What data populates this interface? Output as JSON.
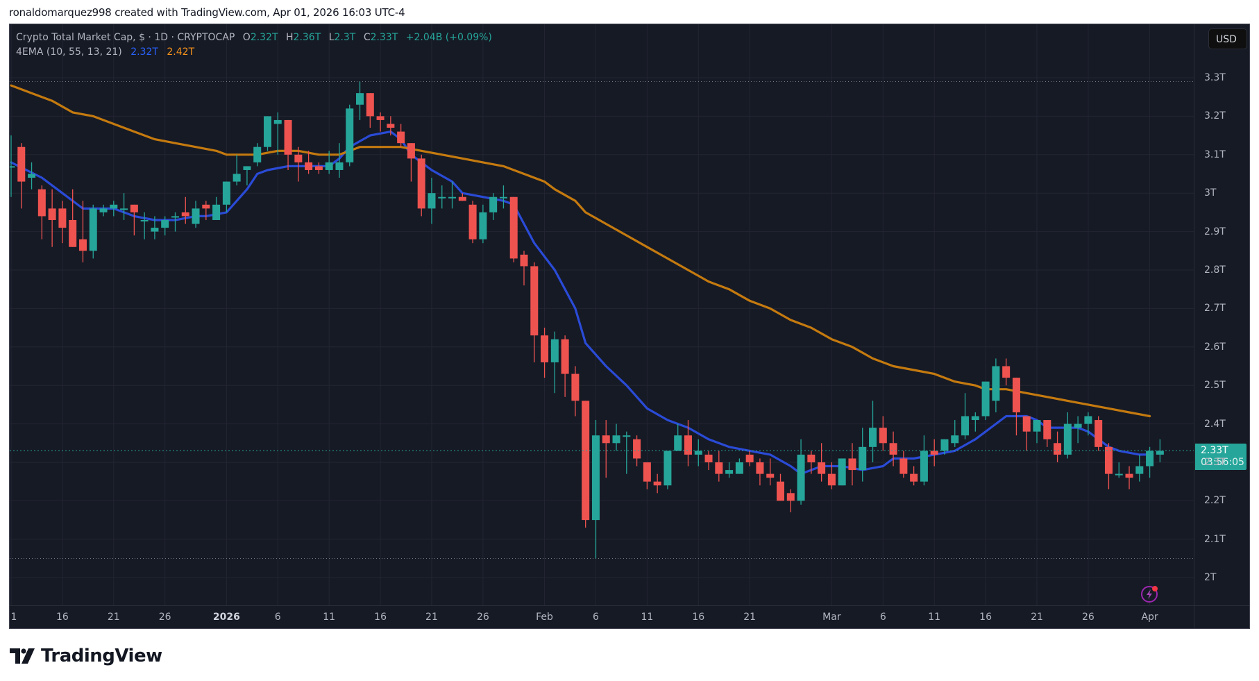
{
  "credit": "ronaldomarquez998 created with TradingView.com, Apr 01, 2026 16:03 UTC-4",
  "legend": {
    "symbol": "Crypto Total Market Cap, $ · 1D · CRYPTOCAP",
    "o_label": "O",
    "o": "2.32T",
    "h_label": "H",
    "h": "2.36T",
    "l_label": "L",
    "l": "2.3T",
    "c_label": "C",
    "c": "2.33T",
    "change": "+2.04B (+0.09%)",
    "indicator": "4EMA (10, 55, 13, 21)",
    "ema_fast": "2.32T",
    "ema_slow": "2.42T"
  },
  "price_axis": {
    "currency_button": "USD",
    "last_price": "2.33T",
    "countdown": "03:56:05"
  },
  "logo": {
    "text": "TradingView"
  },
  "colors": {
    "background": "#161a25",
    "grid": "#232632",
    "up": "#26a69a",
    "down": "#ef5350",
    "ema_fast": "#2a4bd7",
    "ema_slow": "#c47a0f",
    "last_price": "#26a69a",
    "alert_icon": "#9c27b0"
  },
  "chart_data": {
    "type": "candlestick",
    "title": "Crypto Total Market Cap, $ · 1D · CRYPTOCAP",
    "xlabel": "",
    "ylabel": "USD",
    "ylim": [
      1.93,
      3.38
    ],
    "grid": true,
    "y_ticks": [
      "3.3T",
      "3.2T",
      "3.1T",
      "3T",
      "2.9T",
      "2.8T",
      "2.7T",
      "2.6T",
      "2.5T",
      "2.4T",
      "2.3T",
      "2.2T",
      "2.1T",
      "2T"
    ],
    "y_tick_values": [
      3.3,
      3.2,
      3.1,
      3.0,
      2.9,
      2.8,
      2.7,
      2.6,
      2.5,
      2.4,
      2.3,
      2.2,
      2.1,
      2.0
    ],
    "x_ticks": [
      {
        "label": "1",
        "day": 0
      },
      {
        "label": "16",
        "day": 5
      },
      {
        "label": "21",
        "day": 10
      },
      {
        "label": "26",
        "day": 15
      },
      {
        "label": "2026",
        "day": 21,
        "bold": true
      },
      {
        "label": "6",
        "day": 26
      },
      {
        "label": "11",
        "day": 31
      },
      {
        "label": "16",
        "day": 36
      },
      {
        "label": "21",
        "day": 41
      },
      {
        "label": "26",
        "day": 46
      },
      {
        "label": "Feb",
        "day": 52
      },
      {
        "label": "6",
        "day": 57
      },
      {
        "label": "11",
        "day": 62
      },
      {
        "label": "16",
        "day": 67
      },
      {
        "label": "21",
        "day": 72
      },
      {
        "label": "Mar",
        "day": 80
      },
      {
        "label": "6",
        "day": 85
      },
      {
        "label": "11",
        "day": 90
      },
      {
        "label": "16",
        "day": 95
      },
      {
        "label": "21",
        "day": 100
      },
      {
        "label": "26",
        "day": 105
      },
      {
        "label": "Apr",
        "day": 111
      }
    ],
    "x_start": "Dec 11 2025",
    "hlines": [
      3.29,
      2.05
    ],
    "last_price": 2.33,
    "candles_ohlc_T": [
      [
        3.07,
        3.15,
        2.99,
        3.07
      ],
      [
        3.12,
        3.13,
        2.96,
        3.03
      ],
      [
        3.04,
        3.08,
        3.01,
        3.05
      ],
      [
        3.01,
        3.02,
        2.88,
        2.94
      ],
      [
        2.96,
        3.01,
        2.86,
        2.93
      ],
      [
        2.96,
        2.98,
        2.87,
        2.91
      ],
      [
        2.93,
        3.01,
        2.86,
        2.86
      ],
      [
        2.88,
        2.98,
        2.82,
        2.85
      ],
      [
        2.85,
        2.97,
        2.83,
        2.96
      ],
      [
        2.95,
        2.97,
        2.94,
        2.96
      ],
      [
        2.96,
        2.98,
        2.94,
        2.97
      ],
      [
        2.96,
        3.0,
        2.93,
        2.96
      ],
      [
        2.97,
        2.96,
        2.89,
        2.95
      ],
      [
        2.93,
        2.95,
        2.88,
        2.93
      ],
      [
        2.9,
        2.94,
        2.88,
        2.91
      ],
      [
        2.91,
        2.94,
        2.89,
        2.93
      ],
      [
        2.94,
        2.95,
        2.9,
        2.94
      ],
      [
        2.95,
        2.99,
        2.92,
        2.94
      ],
      [
        2.92,
        2.98,
        2.91,
        2.96
      ],
      [
        2.97,
        2.98,
        2.93,
        2.96
      ],
      [
        2.93,
        2.99,
        2.93,
        2.97
      ],
      [
        2.97,
        3.02,
        2.95,
        3.03
      ],
      [
        3.03,
        3.1,
        3.02,
        3.05
      ],
      [
        3.06,
        3.07,
        3.02,
        3.07
      ],
      [
        3.08,
        3.13,
        3.07,
        3.12
      ],
      [
        3.12,
        3.2,
        3.11,
        3.2
      ],
      [
        3.18,
        3.21,
        3.1,
        3.19
      ],
      [
        3.19,
        3.19,
        3.06,
        3.1
      ],
      [
        3.1,
        3.12,
        3.03,
        3.08
      ],
      [
        3.08,
        3.11,
        3.05,
        3.06
      ],
      [
        3.07,
        3.08,
        3.05,
        3.06
      ],
      [
        3.06,
        3.11,
        3.05,
        3.08
      ],
      [
        3.06,
        3.13,
        3.04,
        3.08
      ],
      [
        3.08,
        3.23,
        3.07,
        3.22
      ],
      [
        3.23,
        3.29,
        3.19,
        3.26
      ],
      [
        3.26,
        3.24,
        3.17,
        3.2
      ],
      [
        3.2,
        3.21,
        3.16,
        3.19
      ],
      [
        3.18,
        3.2,
        3.15,
        3.17
      ],
      [
        3.16,
        3.18,
        3.12,
        3.13
      ],
      [
        3.13,
        3.13,
        3.03,
        3.09
      ],
      [
        3.09,
        3.1,
        2.94,
        2.96
      ],
      [
        2.96,
        3.04,
        2.92,
        3.0
      ],
      [
        2.99,
        3.02,
        2.96,
        2.99
      ],
      [
        2.99,
        3.03,
        2.96,
        2.99
      ],
      [
        2.99,
        3.0,
        2.98,
        2.98
      ],
      [
        2.97,
        2.98,
        2.87,
        2.88
      ],
      [
        2.88,
        2.97,
        2.87,
        2.95
      ],
      [
        2.95,
        3.0,
        2.93,
        2.99
      ],
      [
        2.99,
        3.02,
        2.96,
        2.99
      ],
      [
        2.99,
        2.98,
        2.82,
        2.83
      ],
      [
        2.84,
        2.85,
        2.76,
        2.81
      ],
      [
        2.81,
        2.82,
        2.56,
        2.63
      ],
      [
        2.63,
        2.65,
        2.52,
        2.56
      ],
      [
        2.56,
        2.64,
        2.48,
        2.62
      ],
      [
        2.62,
        2.63,
        2.47,
        2.53
      ],
      [
        2.53,
        2.55,
        2.42,
        2.46
      ],
      [
        2.46,
        2.46,
        2.13,
        2.15
      ],
      [
        2.15,
        2.41,
        2.05,
        2.37
      ],
      [
        2.37,
        2.41,
        2.26,
        2.35
      ],
      [
        2.35,
        2.4,
        2.33,
        2.37
      ],
      [
        2.37,
        2.38,
        2.27,
        2.37
      ],
      [
        2.36,
        2.37,
        2.29,
        2.31
      ],
      [
        2.3,
        2.28,
        2.23,
        2.25
      ],
      [
        2.25,
        2.27,
        2.22,
        2.24
      ],
      [
        2.24,
        2.32,
        2.23,
        2.33
      ],
      [
        2.33,
        2.4,
        2.33,
        2.37
      ],
      [
        2.37,
        2.41,
        2.29,
        2.32
      ],
      [
        2.32,
        2.36,
        2.29,
        2.33
      ],
      [
        2.32,
        2.33,
        2.28,
        2.3
      ],
      [
        2.3,
        2.33,
        2.25,
        2.27
      ],
      [
        2.27,
        2.3,
        2.26,
        2.28
      ],
      [
        2.27,
        2.31,
        2.27,
        2.3
      ],
      [
        2.32,
        2.33,
        2.29,
        2.3
      ],
      [
        2.3,
        2.31,
        2.24,
        2.27
      ],
      [
        2.27,
        2.31,
        2.24,
        2.26
      ],
      [
        2.25,
        2.27,
        2.21,
        2.2
      ],
      [
        2.22,
        2.23,
        2.17,
        2.2
      ],
      [
        2.2,
        2.36,
        2.19,
        2.32
      ],
      [
        2.32,
        2.33,
        2.27,
        2.3
      ],
      [
        2.3,
        2.35,
        2.25,
        2.27
      ],
      [
        2.27,
        2.3,
        2.23,
        2.24
      ],
      [
        2.24,
        2.31,
        2.24,
        2.31
      ],
      [
        2.31,
        2.35,
        2.24,
        2.28
      ],
      [
        2.28,
        2.39,
        2.25,
        2.34
      ],
      [
        2.34,
        2.46,
        2.3,
        2.39
      ],
      [
        2.39,
        2.42,
        2.33,
        2.35
      ],
      [
        2.35,
        2.38,
        2.29,
        2.32
      ],
      [
        2.31,
        2.33,
        2.26,
        2.27
      ],
      [
        2.27,
        2.29,
        2.24,
        2.25
      ],
      [
        2.25,
        2.37,
        2.24,
        2.33
      ],
      [
        2.33,
        2.36,
        2.29,
        2.32
      ],
      [
        2.33,
        2.35,
        2.32,
        2.36
      ],
      [
        2.35,
        2.41,
        2.34,
        2.37
      ],
      [
        2.37,
        2.48,
        2.36,
        2.42
      ],
      [
        2.41,
        2.43,
        2.38,
        2.42
      ],
      [
        2.42,
        2.46,
        2.41,
        2.51
      ],
      [
        2.46,
        2.57,
        2.43,
        2.55
      ],
      [
        2.55,
        2.57,
        2.5,
        2.52
      ],
      [
        2.52,
        2.5,
        2.37,
        2.43
      ],
      [
        2.42,
        2.41,
        2.33,
        2.38
      ],
      [
        2.38,
        2.41,
        2.35,
        2.41
      ],
      [
        2.41,
        2.4,
        2.34,
        2.36
      ],
      [
        2.35,
        2.38,
        2.3,
        2.32
      ],
      [
        2.32,
        2.43,
        2.31,
        2.4
      ],
      [
        2.39,
        2.42,
        2.35,
        2.4
      ],
      [
        2.4,
        2.43,
        2.37,
        2.42
      ],
      [
        2.41,
        2.42,
        2.33,
        2.34
      ],
      [
        2.34,
        2.35,
        2.23,
        2.27
      ],
      [
        2.27,
        2.3,
        2.26,
        2.27
      ],
      [
        2.27,
        2.29,
        2.23,
        2.26
      ],
      [
        2.27,
        2.32,
        2.25,
        2.29
      ],
      [
        2.29,
        2.34,
        2.26,
        2.33
      ],
      [
        2.32,
        2.36,
        2.3,
        2.33
      ]
    ],
    "series": [
      {
        "name": "EMA fast (10)",
        "color": "#2a4bd7",
        "last": "2.32T",
        "points": [
          [
            0,
            3.08
          ],
          [
            3,
            3.04
          ],
          [
            5,
            3.0
          ],
          [
            7,
            2.96
          ],
          [
            8,
            2.96
          ],
          [
            10,
            2.96
          ],
          [
            12,
            2.94
          ],
          [
            14,
            2.93
          ],
          [
            16,
            2.93
          ],
          [
            18,
            2.94
          ],
          [
            19,
            2.94
          ],
          [
            21,
            2.95
          ],
          [
            23,
            3.01
          ],
          [
            24,
            3.05
          ],
          [
            25,
            3.06
          ],
          [
            27,
            3.07
          ],
          [
            29,
            3.07
          ],
          [
            31,
            3.07
          ],
          [
            32,
            3.09
          ],
          [
            33,
            3.12
          ],
          [
            35,
            3.15
          ],
          [
            37,
            3.16
          ],
          [
            38,
            3.14
          ],
          [
            39,
            3.1
          ],
          [
            41,
            3.06
          ],
          [
            43,
            3.03
          ],
          [
            44,
            3.0
          ],
          [
            46,
            2.99
          ],
          [
            48,
            2.98
          ],
          [
            49,
            2.97
          ],
          [
            51,
            2.87
          ],
          [
            53,
            2.8
          ],
          [
            55,
            2.7
          ],
          [
            56,
            2.61
          ],
          [
            58,
            2.55
          ],
          [
            60,
            2.5
          ],
          [
            62,
            2.44
          ],
          [
            64,
            2.41
          ],
          [
            66,
            2.39
          ],
          [
            68,
            2.36
          ],
          [
            70,
            2.34
          ],
          [
            72,
            2.33
          ],
          [
            74,
            2.32
          ],
          [
            76,
            2.29
          ],
          [
            77,
            2.27
          ],
          [
            79,
            2.29
          ],
          [
            81,
            2.29
          ],
          [
            83,
            2.28
          ],
          [
            85,
            2.29
          ],
          [
            86,
            2.31
          ],
          [
            88,
            2.31
          ],
          [
            90,
            2.32
          ],
          [
            92,
            2.33
          ],
          [
            94,
            2.36
          ],
          [
            96,
            2.4
          ],
          [
            97,
            2.42
          ],
          [
            99,
            2.42
          ],
          [
            100,
            2.41
          ],
          [
            101,
            2.39
          ],
          [
            103,
            2.39
          ],
          [
            104,
            2.39
          ],
          [
            105,
            2.38
          ],
          [
            107,
            2.34
          ],
          [
            108,
            2.33
          ],
          [
            110,
            2.32
          ],
          [
            111,
            2.32
          ]
        ]
      },
      {
        "name": "EMA slow (55)",
        "color": "#c47a0f",
        "last": "2.42T",
        "points": [
          [
            0,
            3.28
          ],
          [
            2,
            3.26
          ],
          [
            4,
            3.24
          ],
          [
            6,
            3.21
          ],
          [
            8,
            3.2
          ],
          [
            10,
            3.18
          ],
          [
            12,
            3.16
          ],
          [
            14,
            3.14
          ],
          [
            16,
            3.13
          ],
          [
            18,
            3.12
          ],
          [
            20,
            3.11
          ],
          [
            21,
            3.1
          ],
          [
            24,
            3.1
          ],
          [
            26,
            3.11
          ],
          [
            28,
            3.11
          ],
          [
            30,
            3.1
          ],
          [
            31,
            3.1
          ],
          [
            32,
            3.1
          ],
          [
            34,
            3.12
          ],
          [
            36,
            3.12
          ],
          [
            38,
            3.12
          ],
          [
            40,
            3.11
          ],
          [
            42,
            3.1
          ],
          [
            44,
            3.09
          ],
          [
            46,
            3.08
          ],
          [
            48,
            3.07
          ],
          [
            50,
            3.05
          ],
          [
            52,
            3.03
          ],
          [
            53,
            3.01
          ],
          [
            55,
            2.98
          ],
          [
            56,
            2.95
          ],
          [
            58,
            2.92
          ],
          [
            60,
            2.89
          ],
          [
            62,
            2.86
          ],
          [
            64,
            2.83
          ],
          [
            66,
            2.8
          ],
          [
            68,
            2.77
          ],
          [
            70,
            2.75
          ],
          [
            72,
            2.72
          ],
          [
            74,
            2.7
          ],
          [
            76,
            2.67
          ],
          [
            78,
            2.65
          ],
          [
            80,
            2.62
          ],
          [
            82,
            2.6
          ],
          [
            84,
            2.57
          ],
          [
            86,
            2.55
          ],
          [
            88,
            2.54
          ],
          [
            90,
            2.53
          ],
          [
            92,
            2.51
          ],
          [
            94,
            2.5
          ],
          [
            95,
            2.49
          ],
          [
            97,
            2.49
          ],
          [
            99,
            2.48
          ],
          [
            101,
            2.47
          ],
          [
            103,
            2.46
          ],
          [
            105,
            2.45
          ],
          [
            107,
            2.44
          ],
          [
            109,
            2.43
          ],
          [
            111,
            2.42
          ]
        ]
      }
    ]
  }
}
